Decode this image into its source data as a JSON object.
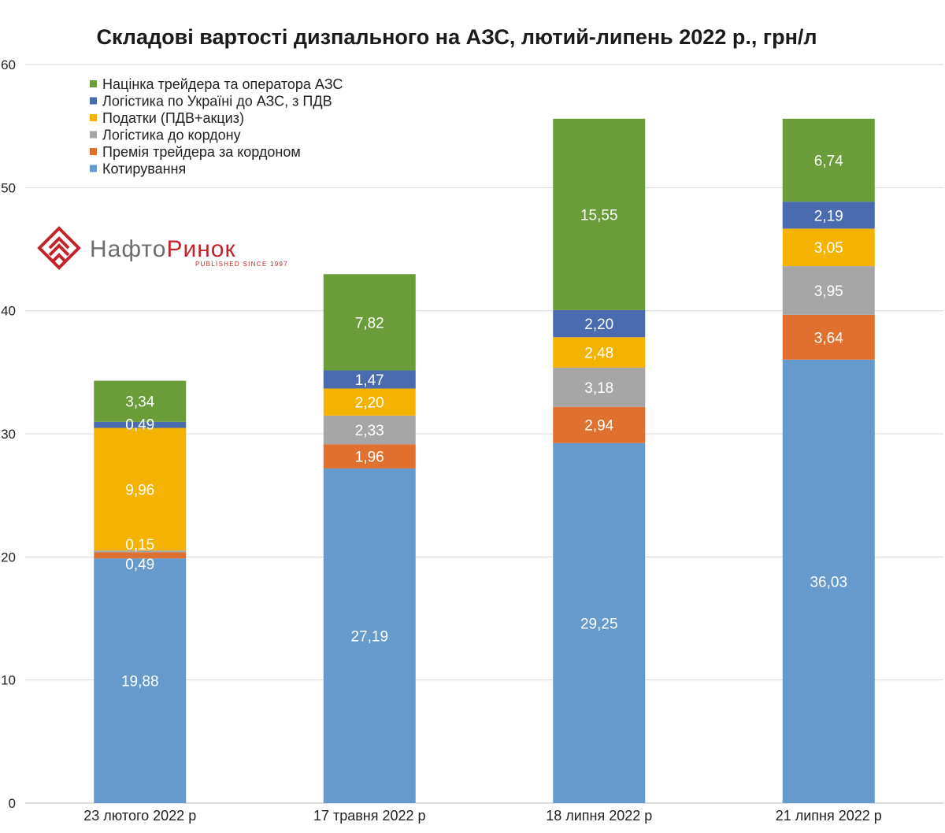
{
  "logo": {
    "part1": "Нафто",
    "part2": "Ринок",
    "tagline": "PUBLISHED SINCE 1997",
    "color_dark": "#6d6e71",
    "color_red": "#c3242b"
  },
  "chart_data": {
    "type": "bar",
    "stacked": true,
    "title": "Складові вартості дизпального на АЗС, лютий-липень 2022 р., грн/л",
    "xlabel": "",
    "ylabel": "",
    "ylim": [
      0,
      60
    ],
    "yticks": [
      0,
      10,
      20,
      30,
      40,
      50,
      60
    ],
    "grid": true,
    "legend_position": "top-left",
    "categories": [
      "23 лютого 2022 р",
      "17 травня 2022 р",
      "18 липня 2022 р",
      "21 липня 2022 р"
    ],
    "series": [
      {
        "name": "Котирування",
        "color": "#6699cc",
        "values": [
          19.88,
          27.19,
          29.25,
          36.03
        ],
        "labels": [
          "19,88",
          "27,19",
          "29,25",
          "36,03"
        ]
      },
      {
        "name": "Премія трейдера за кордоном",
        "color": "#e07030",
        "values": [
          0.49,
          1.96,
          2.94,
          3.64
        ],
        "labels": [
          "0,49",
          "1,96",
          "2,94",
          "3,64"
        ]
      },
      {
        "name": "Логістика до кордону",
        "color": "#a6a6a6",
        "values": [
          0.15,
          2.33,
          3.18,
          3.95
        ],
        "labels": [
          "0,15",
          "2,33",
          "3,18",
          "3,95"
        ]
      },
      {
        "name": "Податки (ПДВ+акциз)",
        "color": "#f5b301",
        "values": [
          9.96,
          2.2,
          2.48,
          3.05
        ],
        "labels": [
          "9,96",
          "2,20",
          "2,48",
          "3,05"
        ]
      },
      {
        "name": "Логістика по Україні до АЗС, з ПДВ",
        "color": "#4a6bb0",
        "values": [
          0.49,
          1.47,
          2.2,
          2.19
        ],
        "labels": [
          "0,49",
          "1,47",
          "2,20",
          "2,19"
        ]
      },
      {
        "name": "Націнка трейдера та оператора АЗС",
        "color": "#6b9c3a",
        "values": [
          3.34,
          7.82,
          15.55,
          6.74
        ],
        "labels": [
          "3,34",
          "7,82",
          "15,55",
          "6,74"
        ]
      }
    ]
  }
}
